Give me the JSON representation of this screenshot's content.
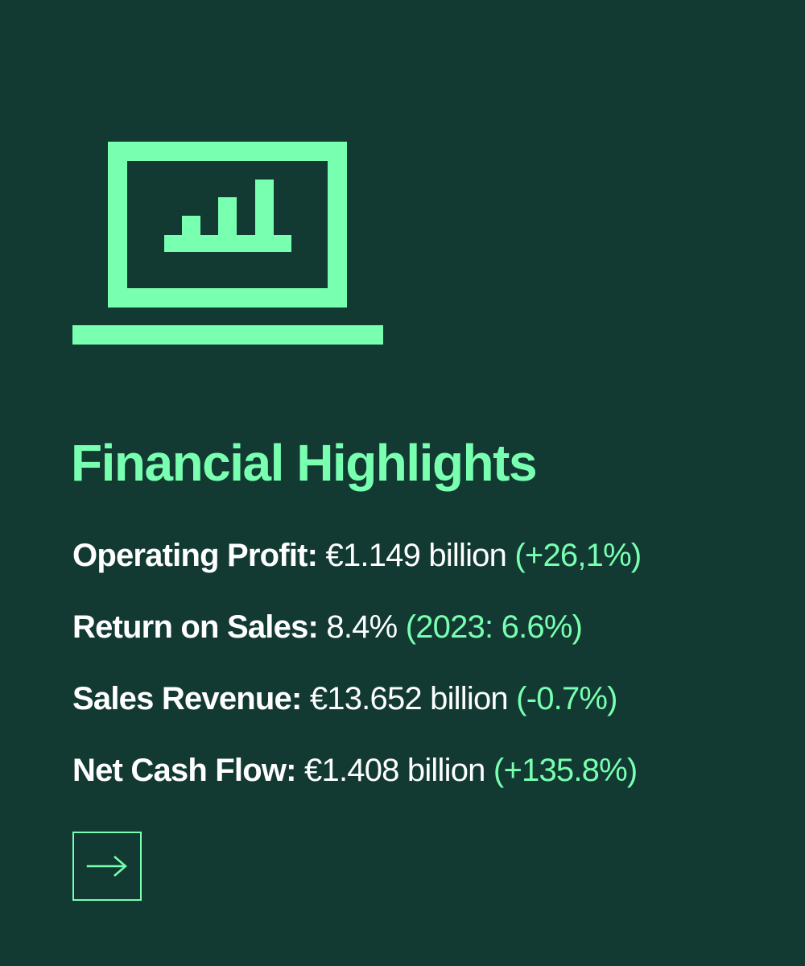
{
  "colors": {
    "background": "#123a32",
    "accent": "#78ffb0",
    "text": "#ffffff"
  },
  "icon": {
    "name": "laptop-bar-chart-icon",
    "bar_levels": [
      1,
      2,
      3
    ]
  },
  "title": "Financial Highlights",
  "metrics": [
    {
      "label": "Operating Profit:",
      "value": "€1.149 billion",
      "change": "(+26,1%)"
    },
    {
      "label": "Return on Sales:",
      "value": "8.4%",
      "change": "(2023: 6.6%)"
    },
    {
      "label": "Sales Revenue:",
      "value": "€13.652 billion",
      "change": "(-0.7%)"
    },
    {
      "label": "Net Cash Flow:",
      "value": "€1.408 billion",
      "change": "(+135.8%)"
    }
  ],
  "cta": {
    "icon": "arrow-right-icon"
  }
}
